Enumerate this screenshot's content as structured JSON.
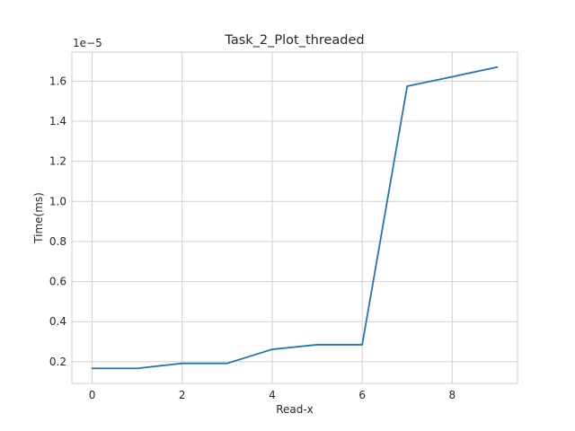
{
  "chart_data": {
    "type": "line",
    "title": "Task_2_Plot_threaded",
    "xlabel": "Read-x",
    "ylabel": "Time(ms)",
    "y_offset_label": "1e−5",
    "x": [
      0,
      1,
      2,
      3,
      4,
      5,
      6,
      7,
      8,
      9
    ],
    "series": [
      {
        "values": [
          0.167,
          0.167,
          0.192,
          0.192,
          0.262,
          0.285,
          0.285,
          1.575,
          1.622,
          1.67
        ],
        "color": "#1f77b4"
      }
    ],
    "xlim": [
      -0.45,
      9.45
    ],
    "ylim": [
      0.092,
      1.745
    ],
    "xticks": [
      0,
      2,
      4,
      6,
      8
    ],
    "xtick_labels": [
      "0",
      "2",
      "4",
      "6",
      "8"
    ],
    "yticks": [
      0.2,
      0.4,
      0.6,
      0.8,
      1.0,
      1.2,
      1.4,
      1.6
    ],
    "ytick_labels": [
      "0.2",
      "0.4",
      "0.6",
      "0.8",
      "1.0",
      "1.2",
      "1.4",
      "1.6"
    ],
    "grid": true,
    "legend": false
  }
}
